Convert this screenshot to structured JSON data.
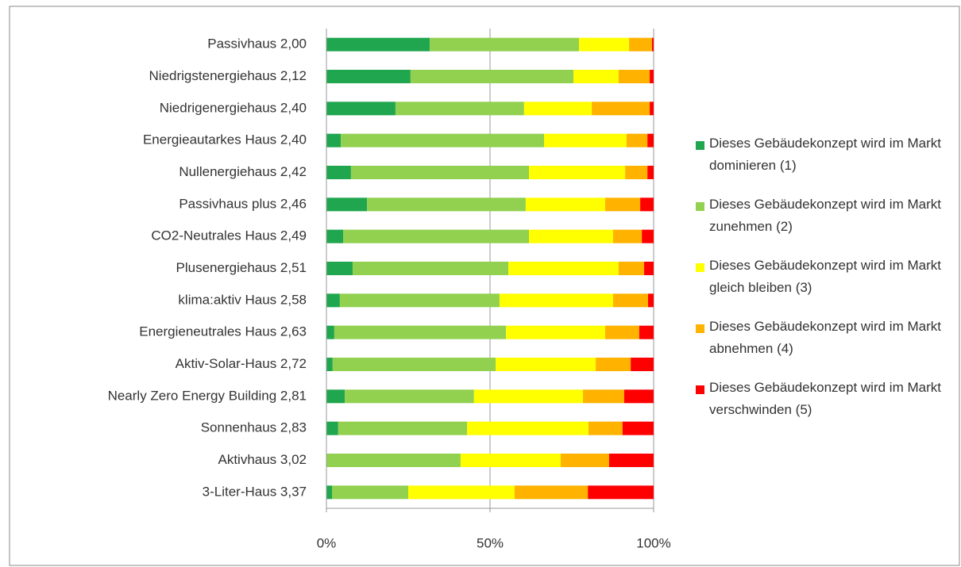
{
  "chart_data": {
    "type": "stacked_barh",
    "categories": [
      "Passivhaus 2,00",
      "Niedrigstenergiehaus 2,12",
      "Niedrigenergiehaus 2,40",
      "Energieautarkes Haus 2,40",
      "Nullenergiehaus 2,42",
      "Passivhaus plus 2,46",
      "CO2-Neutrales Haus 2,49",
      "Plusenergiehaus 2,51",
      "klima:aktiv Haus 2,58",
      "Energieneutrales Haus 2,63",
      "Aktiv-Solar-Haus 2,72",
      "Nearly Zero Energy Building 2,81",
      "Sonnenhaus 2,83",
      "Aktivhaus 3,02",
      "3-Liter-Haus 3,37"
    ],
    "series": [
      {
        "name": "Dieses Gebäudekonzept wird im Markt dominieren (1)",
        "color": "#1fa64e",
        "values": [
          31.6,
          25.7,
          21.1,
          4.4,
          7.5,
          12.4,
          5.1,
          8.0,
          4.1,
          2.4,
          1.9,
          5.6,
          3.6,
          0,
          1.7
        ]
      },
      {
        "name": "Dieses Gebäudekonzept wird im Markt zunehmen (2)",
        "color": "#92d050",
        "values": [
          45.6,
          49.8,
          39.3,
          62.1,
          54.4,
          48.5,
          56.8,
          47.6,
          48.8,
          52.5,
          49.8,
          39.5,
          39.4,
          41.0,
          23.3
        ]
      },
      {
        "name": "Dieses Gebäudekonzept wird im Markt gleich bleiben (3)",
        "color": "#ffff00",
        "values": [
          15.3,
          13.8,
          20.7,
          25.2,
          29.4,
          24.3,
          25.7,
          33.7,
          34.7,
          30.3,
          30.6,
          33.3,
          37.1,
          30.6,
          32.5
        ]
      },
      {
        "name": "Dieses Gebäudekonzept wird im Markt abnehmen (4)",
        "color": "#ffb200",
        "values": [
          7.0,
          9.5,
          17.7,
          6.4,
          6.8,
          10.7,
          8.8,
          7.8,
          10.7,
          10.4,
          10.7,
          12.6,
          10.4,
          14.8,
          22.4
        ]
      },
      {
        "name": "Dieses Gebäudekonzept wird im Markt verschwinden (5)",
        "color": "#ff0000",
        "values": [
          0.5,
          1.2,
          1.2,
          1.9,
          1.9,
          4.1,
          3.6,
          2.9,
          1.7,
          4.4,
          7.0,
          9.0,
          9.5,
          13.6,
          20.1
        ]
      }
    ],
    "xlim": [
      0,
      100
    ],
    "xticks": [
      {
        "value": 0,
        "label": "0%"
      },
      {
        "value": 50,
        "label": "50%"
      },
      {
        "value": 100,
        "label": "100%"
      }
    ],
    "grid": true,
    "legend": "right"
  }
}
